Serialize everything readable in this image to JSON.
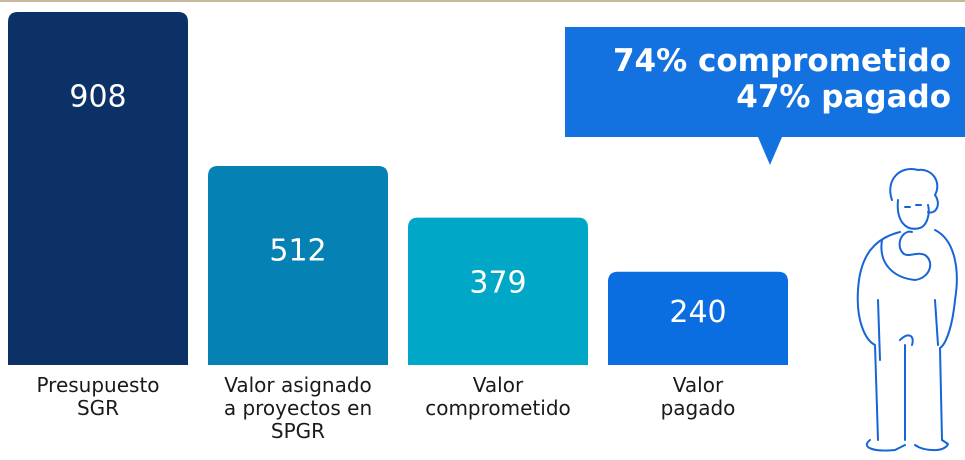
{
  "chart_data": {
    "type": "bar",
    "categories": [
      [
        "Presupuesto",
        "SGR"
      ],
      [
        "Valor asignado",
        "a proyectos en",
        "SPGR"
      ],
      [
        "Valor",
        "comprometido"
      ],
      [
        "Valor",
        "pagado"
      ]
    ],
    "values": [
      908,
      512,
      379,
      240
    ],
    "colors": [
      "#0b3166",
      "#0581b3",
      "#00a7c7",
      "#0a6de0"
    ],
    "ylim": [
      0,
      908
    ],
    "callout": [
      "74% comprometido",
      "47% pagado"
    ],
    "callout_color": "#1471e0"
  }
}
